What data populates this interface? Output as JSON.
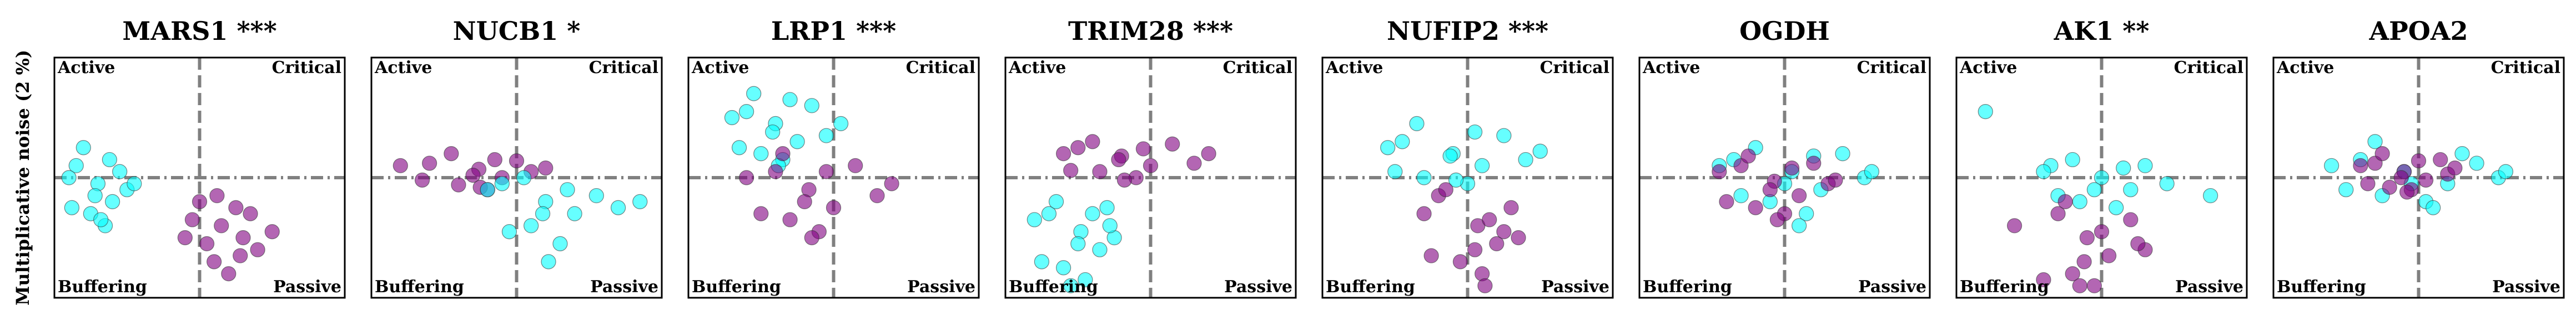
{
  "quadrant_labels": {
    "top_left": "Active",
    "top_right": "Critical",
    "bottom_left": "Buffering",
    "bottom_right": "Passive"
  },
  "ylabel": "Multiplicative noise (2 %)",
  "chart_data": [
    {
      "type": "scatter",
      "title": "MARS1 ***",
      "xlim": [
        -1,
        1
      ],
      "ylim": [
        -1,
        1
      ],
      "series": [
        {
          "color": "#00ffff",
          "x": [
            -0.85,
            -0.7,
            -0.6,
            -0.75,
            -0.9,
            -0.55,
            -0.65,
            -0.8,
            -0.5,
            -0.72,
            -0.62,
            -0.88,
            -0.45,
            -0.68
          ],
          "values": [
            0.1,
            -0.05,
            -0.2,
            -0.3,
            0.0,
            0.05,
            -0.4,
            0.25,
            -0.1,
            -0.15,
            0.15,
            -0.25,
            -0.05,
            -0.35
          ]
        },
        {
          "color": "#800080",
          "x": [
            0.0,
            0.15,
            0.3,
            0.1,
            -0.05,
            0.25,
            0.4,
            0.2,
            0.05,
            0.35,
            0.5,
            0.12,
            0.28,
            -0.1
          ],
          "values": [
            -0.2,
            -0.4,
            -0.5,
            -0.7,
            -0.35,
            -0.25,
            -0.6,
            -0.8,
            -0.55,
            -0.3,
            -0.45,
            -0.15,
            -0.65,
            -0.5
          ]
        }
      ]
    },
    {
      "type": "scatter",
      "title": "NUCB1 *",
      "xlim": [
        -1,
        1
      ],
      "ylim": [
        -1,
        1
      ],
      "series": [
        {
          "color": "#800080",
          "x": [
            -0.6,
            -0.26,
            -0.1,
            -0.4,
            -0.8,
            0.0,
            -0.2,
            -0.45,
            0.1,
            -0.3,
            -0.15,
            -0.65,
            0.2,
            -0.25
          ],
          "values": [
            0.12,
            0.07,
            0.0,
            -0.06,
            0.1,
            0.14,
            -0.1,
            0.2,
            0.05,
            0.02,
            0.15,
            -0.02,
            0.08,
            -0.08
          ]
        },
        {
          "color": "#00ffff",
          "x": [
            -0.1,
            0.2,
            0.4,
            0.1,
            -0.2,
            0.55,
            0.3,
            0.05,
            0.7,
            0.18,
            0.35,
            -0.05,
            0.85,
            0.22
          ],
          "values": [
            -0.05,
            -0.2,
            -0.3,
            -0.4,
            -0.1,
            -0.15,
            -0.55,
            0.0,
            -0.25,
            -0.3,
            -0.1,
            -0.45,
            -0.2,
            -0.7
          ]
        }
      ]
    },
    {
      "type": "scatter",
      "title": "LRP1 ***",
      "xlim": [
        -1,
        1
      ],
      "ylim": [
        -1,
        1
      ],
      "series": [
        {
          "color": "#00ffff",
          "x": [
            -0.6,
            -0.4,
            -0.25,
            -0.5,
            -0.7,
            -0.15,
            -0.35,
            -0.55,
            -0.05,
            -0.42,
            -0.3,
            -0.65,
            0.05,
            -0.38
          ],
          "values": [
            0.55,
            0.45,
            0.3,
            0.2,
            0.5,
            0.6,
            0.15,
            0.7,
            0.35,
            0.38,
            0.65,
            0.25,
            0.45,
            0.1
          ]
        },
        {
          "color": "#800080",
          "x": [
            -0.4,
            -0.17,
            0.0,
            -0.3,
            -0.6,
            0.15,
            -0.1,
            -0.35,
            0.3,
            -0.2,
            -0.05,
            -0.5,
            0.4,
            -0.15
          ],
          "values": [
            0.05,
            -0.1,
            -0.25,
            -0.35,
            0.0,
            0.1,
            -0.45,
            0.2,
            -0.15,
            -0.2,
            0.05,
            -0.3,
            -0.05,
            -0.5
          ]
        }
      ]
    },
    {
      "type": "scatter",
      "title": "TRIM28 ***",
      "xlim": [
        -1,
        1
      ],
      "ylim": [
        -1,
        1
      ],
      "series": [
        {
          "color": "#800080",
          "x": [
            -0.5,
            -0.2,
            0.0,
            -0.35,
            -0.6,
            0.15,
            -0.1,
            -0.4,
            0.3,
            -0.22,
            -0.05,
            -0.55,
            0.4,
            -0.18
          ],
          "values": [
            0.25,
            0.18,
            0.1,
            0.05,
            0.2,
            0.28,
            0.0,
            0.3,
            0.12,
            0.15,
            0.24,
            0.06,
            0.2,
            -0.02
          ]
        },
        {
          "color": "#00ffff",
          "x": [
            -0.7,
            -0.48,
            -0.35,
            -0.6,
            -0.8,
            -0.3,
            -0.45,
            -0.65,
            -0.25,
            -0.5,
            -0.4,
            -0.75,
            -0.28,
            -0.55
          ],
          "values": [
            -0.3,
            -0.45,
            -0.6,
            -0.75,
            -0.35,
            -0.25,
            -0.85,
            -0.2,
            -0.5,
            -0.55,
            -0.3,
            -0.7,
            -0.4,
            -0.9
          ]
        }
      ]
    },
    {
      "type": "scatter",
      "title": "NUFIP2 ***",
      "xlim": [
        -1,
        1
      ],
      "ylim": [
        -1,
        1
      ],
      "series": [
        {
          "color": "#00ffff",
          "x": [
            -0.45,
            -0.1,
            0.1,
            -0.3,
            -0.55,
            0.25,
            0.0,
            -0.35,
            0.4,
            -0.12,
            0.05,
            -0.5,
            0.5,
            -0.08
          ],
          "values": [
            0.3,
            0.2,
            0.1,
            0.0,
            0.25,
            0.35,
            -0.05,
            0.45,
            0.15,
            0.18,
            0.38,
            0.05,
            0.22,
            -0.02
          ]
        },
        {
          "color": "#800080",
          "x": [
            -0.2,
            0.07,
            0.2,
            -0.05,
            -0.3,
            0.3,
            0.1,
            -0.15,
            0.35,
            0.05,
            0.15,
            -0.25,
            0.25,
            0.12
          ],
          "values": [
            -0.15,
            -0.4,
            -0.55,
            -0.7,
            -0.3,
            -0.25,
            -0.8,
            -0.1,
            -0.5,
            -0.6,
            -0.35,
            -0.65,
            -0.45,
            -0.9
          ]
        }
      ]
    },
    {
      "type": "scatter",
      "title": "OGDH",
      "xlim": [
        -1,
        1
      ],
      "ylim": [
        -1,
        1
      ],
      "series": [
        {
          "color": "#00ffff",
          "x": [
            -0.35,
            0.05,
            0.25,
            -0.1,
            -0.45,
            0.4,
            0.15,
            -0.2,
            0.55,
            0.0,
            0.2,
            -0.3,
            0.6,
            0.1
          ],
          "values": [
            0.15,
            0.05,
            -0.1,
            -0.2,
            0.1,
            0.2,
            -0.3,
            0.25,
            0.0,
            -0.05,
            0.18,
            -0.15,
            0.05,
            -0.4
          ]
        },
        {
          "color": "#800080",
          "x": [
            -0.3,
            -0.07,
            0.1,
            -0.2,
            -0.45,
            0.2,
            0.0,
            -0.25,
            0.3,
            -0.1,
            0.05,
            -0.4,
            0.35,
            -0.05
          ],
          "values": [
            0.1,
            -0.03,
            -0.15,
            -0.25,
            0.05,
            0.12,
            -0.3,
            0.18,
            -0.05,
            -0.1,
            0.08,
            -0.2,
            -0.02,
            -0.35
          ]
        }
      ]
    },
    {
      "type": "scatter",
      "title": "AK1 **",
      "xlim": [
        -1,
        1
      ],
      "ylim": [
        -1,
        1
      ],
      "series": [
        {
          "color": "#00ffff",
          "x": [
            -0.35,
            0.0,
            0.2,
            -0.15,
            -0.4,
            0.3,
            0.1,
            -0.2,
            0.45,
            -0.05,
            0.15,
            -0.3,
            0.75,
            -0.8
          ],
          "values": [
            0.1,
            0.0,
            -0.1,
            -0.2,
            0.05,
            0.1,
            -0.25,
            0.15,
            -0.05,
            -0.1,
            0.08,
            -0.15,
            -0.15,
            0.55
          ]
        },
        {
          "color": "#800080",
          "x": [
            -0.3,
            -0.1,
            0.05,
            -0.2,
            -0.6,
            0.2,
            -0.05,
            -0.25,
            0.3,
            -0.12,
            0.0,
            -0.4,
            0.25,
            -0.15
          ],
          "values": [
            -0.3,
            -0.5,
            -0.65,
            -0.8,
            -0.4,
            -0.35,
            -0.9,
            -0.2,
            -0.6,
            -0.7,
            -0.45,
            -0.85,
            -0.55,
            -0.9
          ]
        }
      ]
    },
    {
      "type": "scatter",
      "title": "APOA2",
      "xlim": [
        -1,
        1
      ],
      "ylim": [
        -1,
        1
      ],
      "series": [
        {
          "color": "#00ffff",
          "x": [
            -0.4,
            -0.1,
            0.2,
            -0.25,
            -0.6,
            0.4,
            0.05,
            -0.3,
            0.55,
            -0.05,
            0.3,
            -0.5,
            0.6,
            0.1
          ],
          "values": [
            0.15,
            0.05,
            -0.05,
            -0.15,
            0.1,
            0.12,
            -0.2,
            0.3,
            0.0,
            -0.05,
            0.2,
            -0.1,
            0.05,
            -0.25
          ]
        },
        {
          "color": "#800080",
          "x": [
            -0.3,
            -0.1,
            0.05,
            -0.2,
            -0.4,
            0.15,
            -0.05,
            -0.25,
            0.2,
            -0.12,
            0.0,
            -0.35,
            0.25,
            -0.08
          ],
          "values": [
            0.12,
            0.05,
            -0.02,
            -0.08,
            0.1,
            0.15,
            -0.1,
            0.2,
            0.03,
            0.0,
            0.14,
            -0.05,
            0.08,
            -0.12
          ]
        }
      ]
    }
  ]
}
